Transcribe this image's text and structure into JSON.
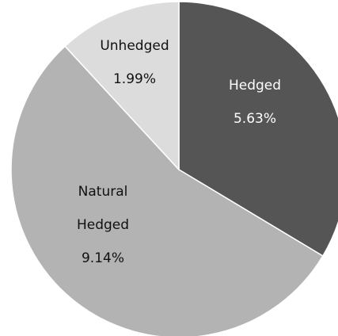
{
  "chart_data": {
    "type": "pie",
    "title": "",
    "slices": [
      {
        "label_lines": [
          "Hedged"
        ],
        "value_text": "5.63%",
        "value": 5.63,
        "color": "#555555",
        "text_color": "#ffffff"
      },
      {
        "label_lines": [
          "Natural",
          "Hedged"
        ],
        "value_text": "9.14%",
        "value": 9.14,
        "color": "#b3b3b3",
        "text_color": "#111111"
      },
      {
        "label_lines": [
          "Unhedged"
        ],
        "value_text": "1.99%",
        "value": 1.99,
        "color": "#dcdcdc",
        "text_color": "#111111"
      }
    ],
    "start_angle": "12 o'clock",
    "direction": "clockwise"
  }
}
